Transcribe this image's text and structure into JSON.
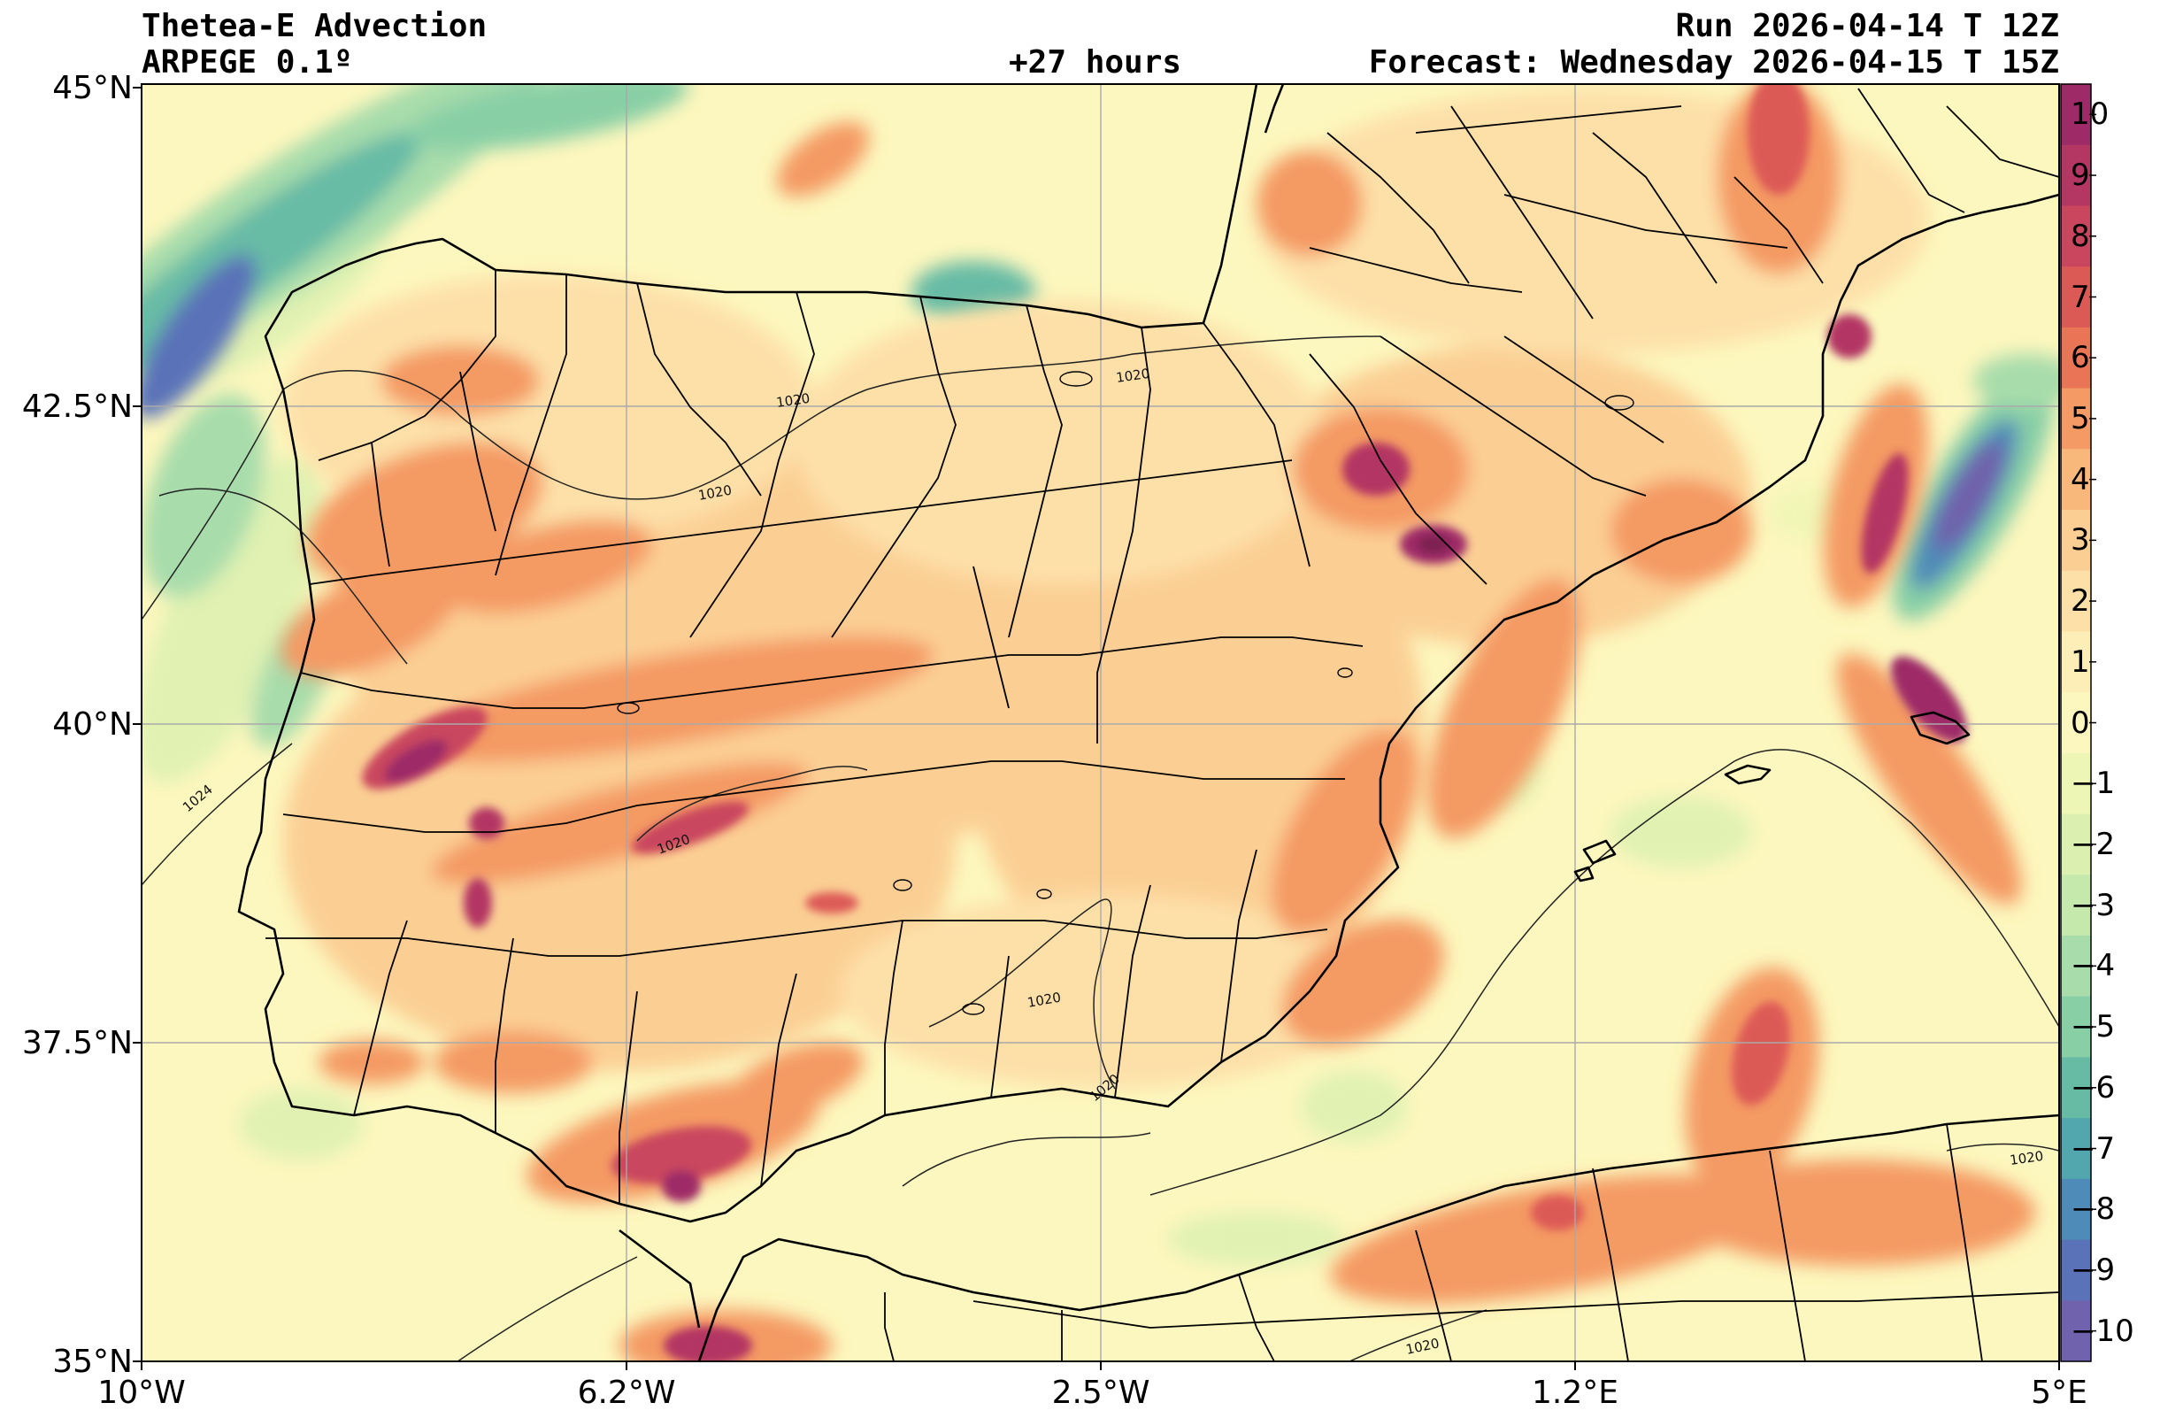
{
  "header": {
    "title": "Thetea-E Advection",
    "model": "ARPEGE 0.1º",
    "lead": "+27 hours",
    "run": "Run 2026-04-14 T 12Z",
    "forecast": "Forecast: Wednesday 2026-04-15 T 15Z"
  },
  "axes": {
    "lat_labels": [
      "45°N",
      "42.5°N",
      "40°N",
      "37.5°N",
      "35°N"
    ],
    "lon_labels": [
      "10°W",
      "6.2°W",
      "2.5°W",
      "1.2°E",
      "5°E"
    ]
  },
  "colorbar": {
    "labels": [
      "10",
      "9",
      "8",
      "7",
      "6",
      "5",
      "4",
      "3",
      "2",
      "1",
      "0",
      "−1",
      "−2",
      "−3",
      "−4",
      "−5",
      "−6",
      "−7",
      "−8",
      "−9",
      "−10"
    ],
    "colors": [
      "#9e2a68",
      "#b33663",
      "#c9465e",
      "#dc5a56",
      "#ea7556",
      "#f49a64",
      "#f8b87c",
      "#fbcf94",
      "#fde0a8",
      "#fdedb6",
      "#fcf7be",
      "#eef6b6",
      "#dbf0b0",
      "#c5e8ad",
      "#a8dcab",
      "#88cfa6",
      "#67bba5",
      "#52a6ae",
      "#4f8bb8",
      "#5a72b8",
      "#7062ac"
    ]
  },
  "isobar_labels": [
    "1020",
    "1020",
    "1020",
    "1020",
    "1020",
    "1024",
    "1020",
    "1020",
    "1020"
  ],
  "grid": "on",
  "coastline_color": "#000000"
}
